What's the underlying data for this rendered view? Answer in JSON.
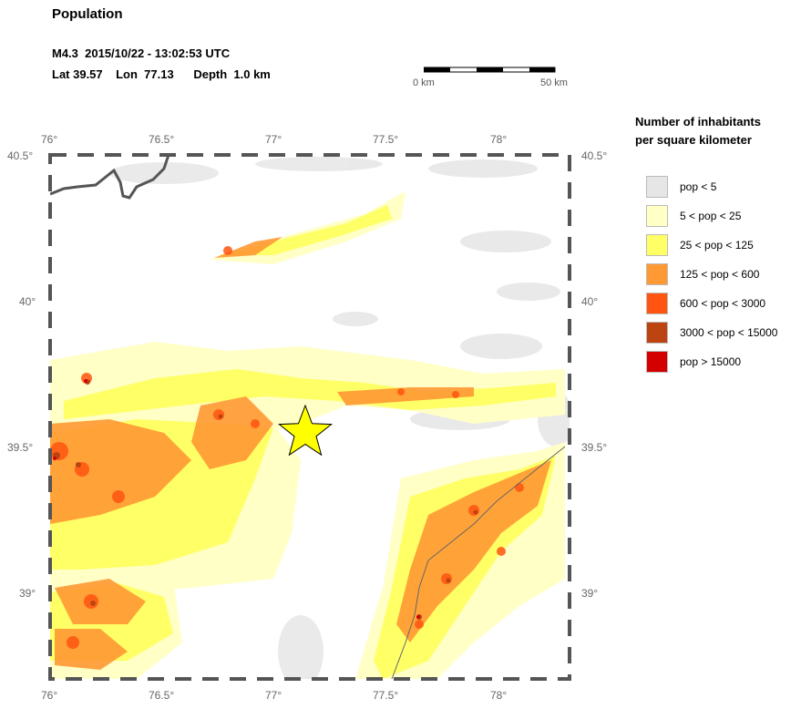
{
  "header": {
    "title": "Population",
    "event_line": "M4.3  2015/10/22 - 13:02:53 UTC",
    "location_line": "Lat 39.57    Lon  77.13      Depth  1.0 km"
  },
  "scale_bar": {
    "left_label": "0 km",
    "right_label": "50 km",
    "length_km": 50,
    "segments": 5
  },
  "map": {
    "lon_range": [
      76.0,
      78.3
    ],
    "lat_range": [
      38.7,
      40.5
    ],
    "lon_ticks": [
      "76°",
      "76.5°",
      "77°",
      "77.5°",
      "78°"
    ],
    "lat_ticks": [
      "40.5°",
      "40°",
      "39.5°",
      "39°"
    ],
    "epicenter": {
      "lat": 39.57,
      "lon": 77.13,
      "symbol": "star-icon",
      "color": "#ffff00"
    },
    "colors": {
      "frame": "#555555",
      "border_line": "#555555"
    }
  },
  "legend": {
    "title_line1": "Number of inhabitants",
    "title_line2": "per square kilometer",
    "items": [
      {
        "label": "pop < 5",
        "color": "#e6e6e6"
      },
      {
        "label": "5 < pop < 25",
        "color": "#ffffc6"
      },
      {
        "label": "25 < pop < 125",
        "color": "#ffff66"
      },
      {
        "label": "125 < pop < 600",
        "color": "#ff9933"
      },
      {
        "label": "600 < pop < 3000",
        "color": "#ff5511"
      },
      {
        "label": "3000 < pop < 15000",
        "color": "#bb4411"
      },
      {
        "label": "pop > 15000",
        "color": "#d40000"
      }
    ]
  }
}
